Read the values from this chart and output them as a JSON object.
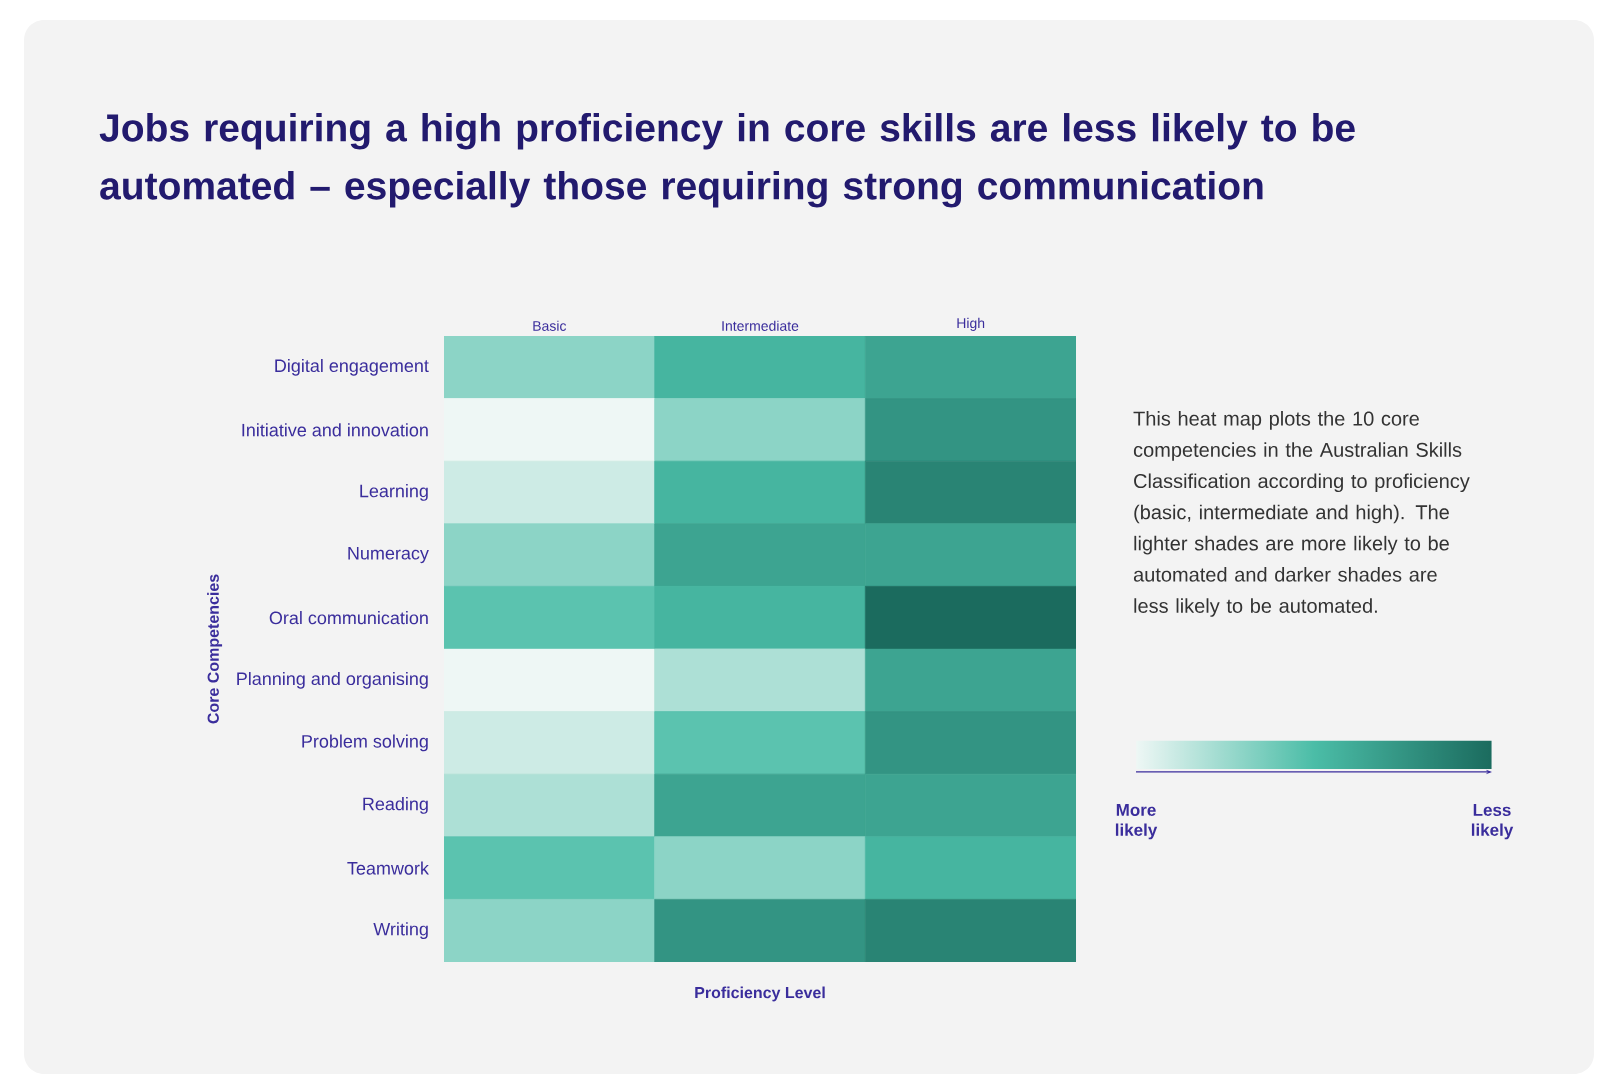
{
  "chart_data": {
    "type": "heatmap",
    "title": "Jobs requiring a high proficiency in core skills are less likely to be automated – especially those requiring strong communication",
    "xlabel": "Proficiency Level",
    "ylabel": "Core Competencies",
    "categories": [
      "Basic",
      "Intermediate",
      "High"
    ],
    "y_categories": [
      "Digital engagement",
      "Initiative and innovation",
      "Learning",
      "Numeracy",
      "Oral communication",
      "Planning and organising",
      "Problem solving",
      "Reading",
      "Teamwork",
      "Writing"
    ],
    "cells": [
      [
        0.3,
        0.55,
        0.65
      ],
      [
        0.0,
        0.3,
        0.75
      ],
      [
        0.1,
        0.55,
        0.85
      ],
      [
        0.3,
        0.65,
        0.65
      ],
      [
        0.45,
        0.55,
        1.0
      ],
      [
        0.0,
        0.2,
        0.65
      ],
      [
        0.1,
        0.45,
        0.75
      ],
      [
        0.2,
        0.65,
        0.65
      ],
      [
        0.45,
        0.3,
        0.55
      ],
      [
        0.3,
        0.75,
        0.85
      ]
    ],
    "clim": [
      0,
      1
    ],
    "cticks": [
      {
        "value": 0,
        "label": "More likely"
      },
      {
        "value": 1,
        "label": "Less likely"
      }
    ],
    "annotations": [
      "This heat map plots the 10 core competencies in the Australian Skills Classification according to proficiency (basic, intermediate and high). The lighter shades are more likely to be automated and darker shades are less likely to be automated."
    ]
  }
}
